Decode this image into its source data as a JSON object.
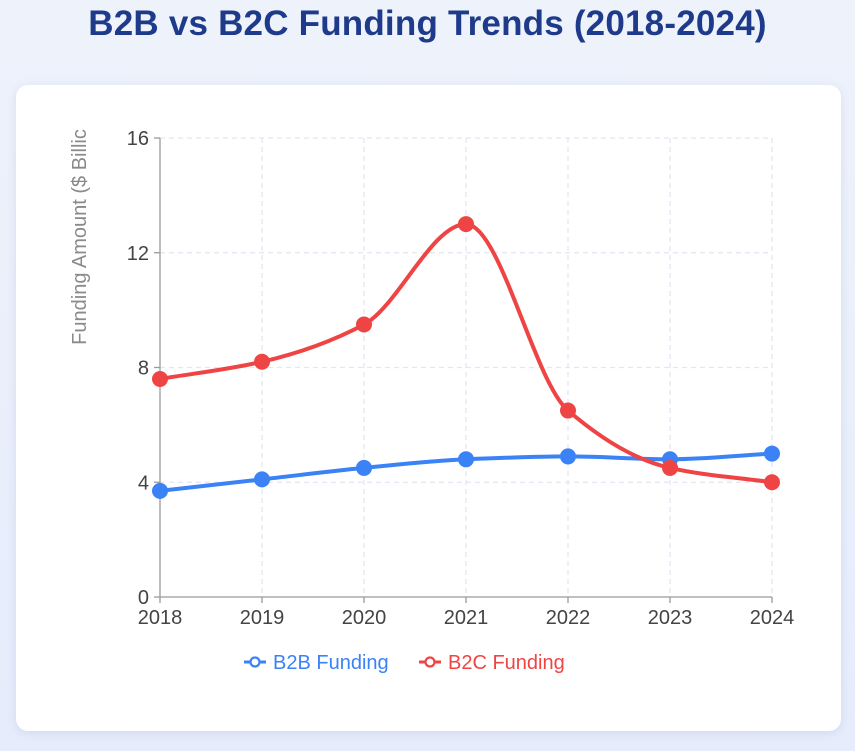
{
  "page": {
    "title": "B2B vs B2C Funding Trends (2018-2024)"
  },
  "chart_data": {
    "type": "line",
    "title": "B2B vs B2C Funding Trends (2018-2024)",
    "xlabel": "",
    "ylabel": "Funding Amount ($ Billic",
    "x": [
      "2018",
      "2019",
      "2020",
      "2021",
      "2022",
      "2023",
      "2024"
    ],
    "ylim": [
      0,
      16
    ],
    "yticks": [
      0,
      4,
      8,
      12,
      16
    ],
    "grid": true,
    "legend_position": "bottom",
    "series": [
      {
        "name": "B2B Funding",
        "color": "#3b82f6",
        "values": [
          3.7,
          4.1,
          4.5,
          4.8,
          4.9,
          4.8,
          5.0
        ]
      },
      {
        "name": "B2C Funding",
        "color": "#ef4444",
        "values": [
          7.6,
          8.2,
          9.5,
          13.0,
          6.5,
          4.5,
          4.0
        ]
      }
    ]
  }
}
